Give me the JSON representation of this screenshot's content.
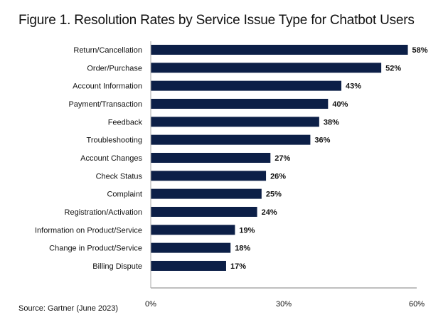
{
  "chart_data": {
    "type": "bar",
    "orientation": "horizontal",
    "title": "Figure 1. Resolution Rates by Service Issue Type for Chatbot Users",
    "categories": [
      "Return/Cancellation",
      "Order/Purchase",
      "Account Information",
      "Payment/Transaction",
      "Feedback",
      "Troubleshooting",
      "Account Changes",
      "Check Status",
      "Complaint",
      "Registration/Activation",
      "Information on Product/Service",
      "Change in Product/Service",
      "Billing Dispute"
    ],
    "values": [
      58,
      52,
      43,
      40,
      38,
      36,
      27,
      26,
      25,
      24,
      19,
      18,
      17
    ],
    "data_labels": [
      "58%",
      "52%",
      "43%",
      "40%",
      "38%",
      "36%",
      "27%",
      "26%",
      "25%",
      "24%",
      "19%",
      "18%",
      "17%"
    ],
    "xlim": [
      0,
      60
    ],
    "x_ticks": [
      "0%",
      "30%",
      "60%"
    ],
    "grid": false,
    "bar_color": "#0c1f47",
    "source": "Source: Gartner (June 2023)"
  }
}
